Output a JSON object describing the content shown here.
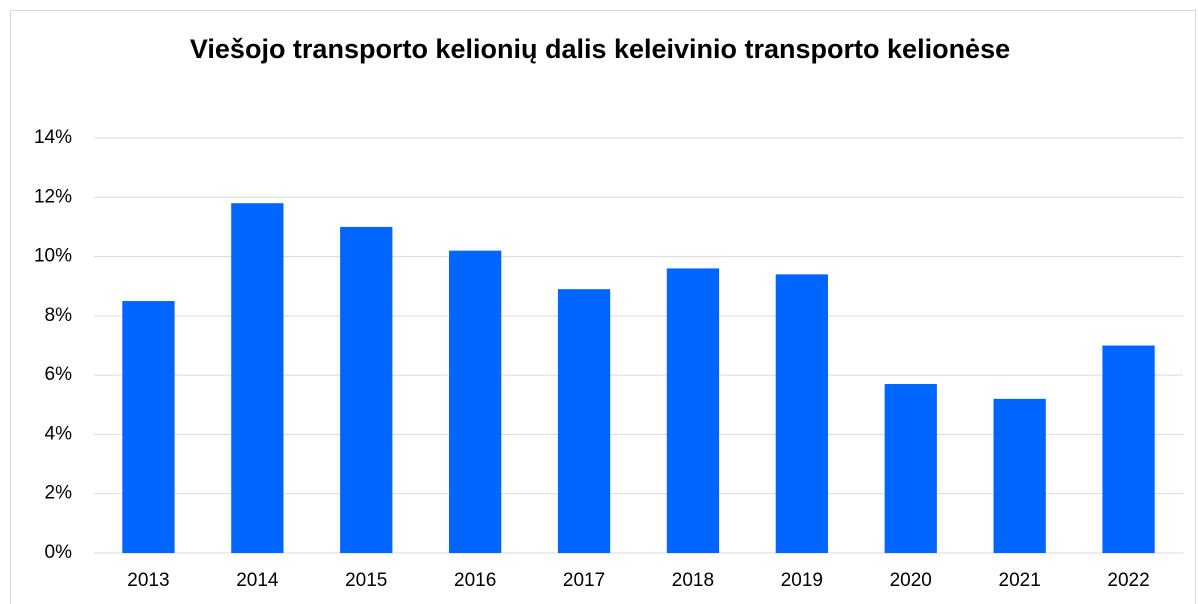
{
  "chart_data": {
    "type": "bar",
    "title": "Viešojo transporto kelionių dalis keleivinio transporto kelionėse",
    "categories": [
      "2013",
      "2014",
      "2015",
      "2016",
      "2017",
      "2018",
      "2019",
      "2020",
      "2021",
      "2022"
    ],
    "values": [
      8.5,
      11.8,
      11.0,
      10.2,
      8.9,
      9.6,
      9.4,
      5.7,
      5.2,
      7.0
    ],
    "color": "#0066ff",
    "ylim": [
      0,
      14
    ],
    "yticks": [
      {
        "value": 0,
        "label": "0%"
      },
      {
        "value": 2,
        "label": "2%"
      },
      {
        "value": 4,
        "label": "4%"
      },
      {
        "value": 6,
        "label": "6%"
      },
      {
        "value": 8,
        "label": "8%"
      },
      {
        "value": 10,
        "label": "10%"
      },
      {
        "value": 12,
        "label": "12%"
      },
      {
        "value": 14,
        "label": "14%"
      }
    ],
    "grid": true
  }
}
